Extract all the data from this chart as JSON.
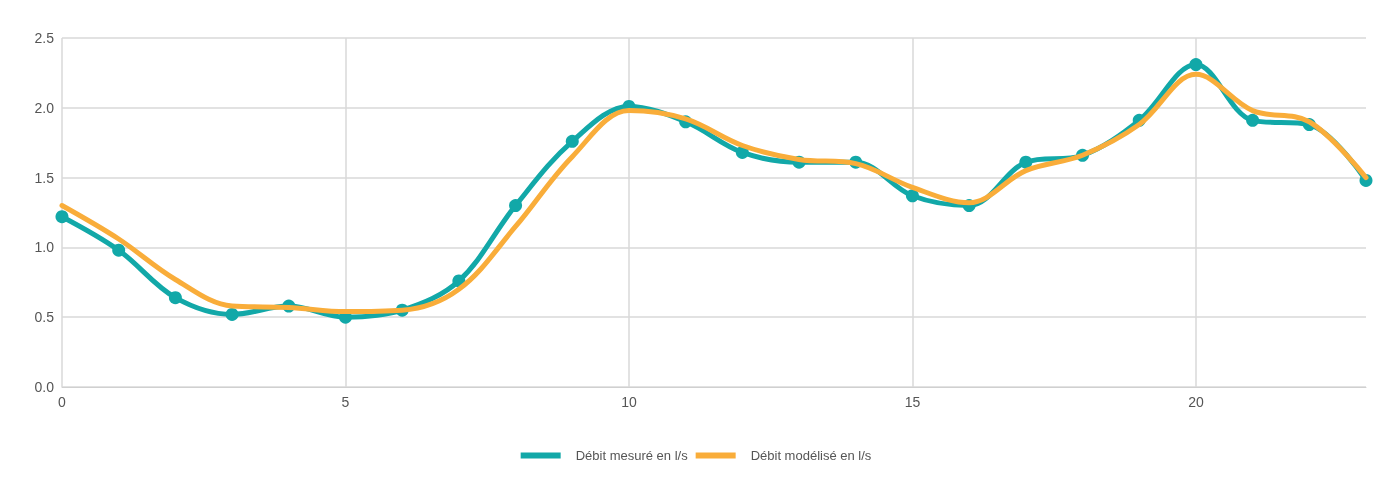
{
  "chart_data": {
    "type": "line",
    "x": [
      0,
      1,
      2,
      3,
      4,
      5,
      6,
      7,
      8,
      9,
      10,
      11,
      12,
      13,
      14,
      15,
      16,
      17,
      18,
      19,
      20,
      21,
      22,
      23
    ],
    "series": [
      {
        "name": "Débit mesuré en l/s",
        "color": "#12a8a8",
        "marker": "circle",
        "values": [
          1.22,
          0.98,
          0.64,
          0.52,
          0.58,
          0.5,
          0.55,
          0.76,
          1.3,
          1.76,
          2.01,
          1.9,
          1.68,
          1.61,
          1.61,
          1.37,
          1.3,
          1.61,
          1.66,
          1.91,
          2.31,
          1.91,
          1.88,
          1.48
        ]
      },
      {
        "name": "Débit modélisé en l/s",
        "color": "#f9ad3a",
        "marker": "none",
        "values": [
          1.3,
          1.06,
          0.77,
          0.58,
          0.57,
          0.54,
          0.55,
          0.7,
          1.15,
          1.65,
          1.98,
          1.92,
          1.73,
          1.63,
          1.6,
          1.43,
          1.32,
          1.55,
          1.66,
          1.88,
          2.24,
          1.98,
          1.9,
          1.5
        ]
      }
    ],
    "xlim": [
      0,
      23
    ],
    "xticks": [
      0,
      5,
      10,
      15,
      20
    ],
    "ylim": [
      0,
      2.5
    ],
    "yticks": [
      {
        "value": 0,
        "label": "0.0"
      },
      {
        "value": 0.5,
        "label": "0.5"
      },
      {
        "value": 1,
        "label": "1.0"
      },
      {
        "value": 1.5,
        "label": "1.5"
      },
      {
        "value": 2,
        "label": "2.0"
      },
      {
        "value": 2.5,
        "label": "2.5"
      }
    ],
    "grid": true,
    "legend": "bottom"
  }
}
